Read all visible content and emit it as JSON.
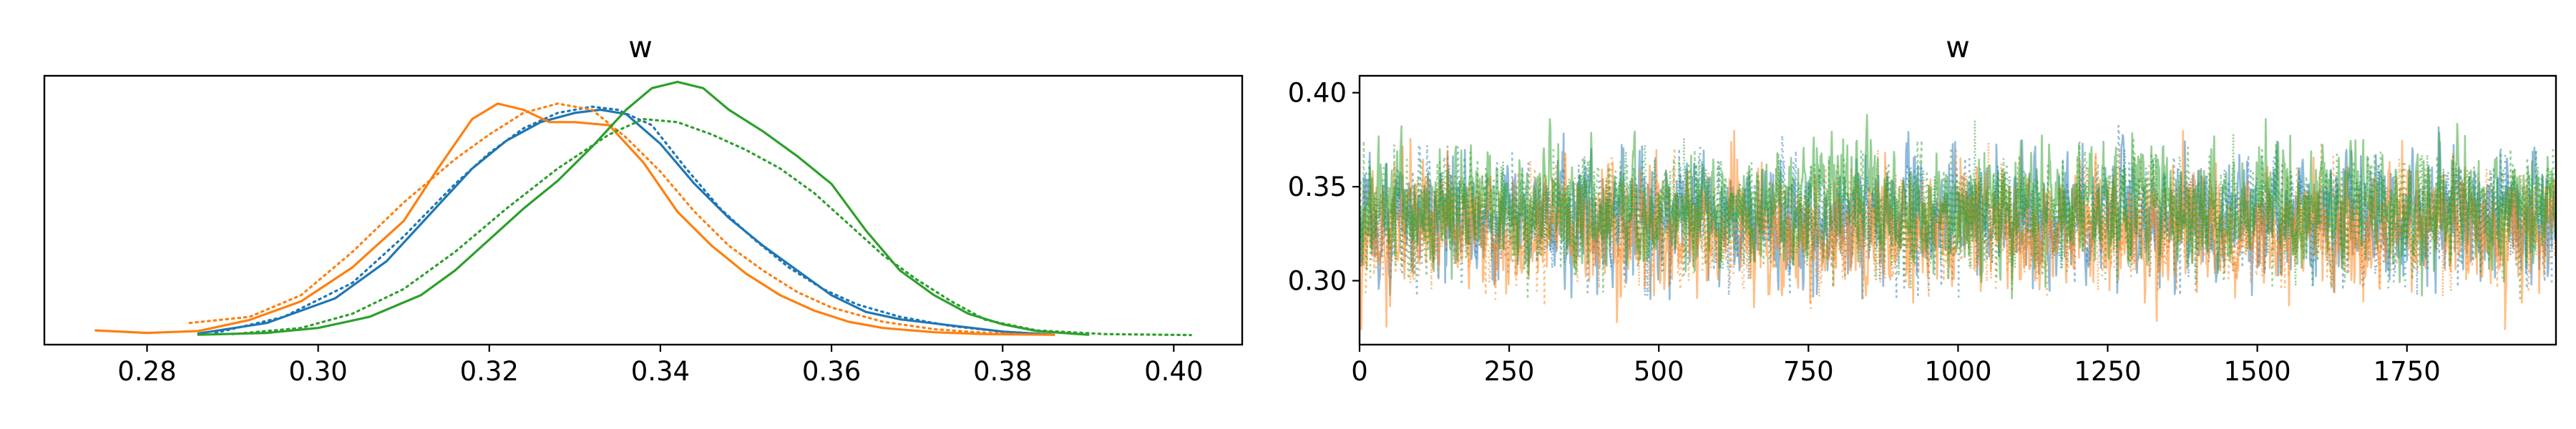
{
  "chart_data": [
    {
      "type": "area",
      "title": "w",
      "xlabel": "",
      "ylabel": "",
      "xlim": [
        0.268,
        0.408
      ],
      "ylim": [
        -1.5,
        42
      ],
      "xticks": [
        0.28,
        0.3,
        0.32,
        0.34,
        0.36,
        0.38,
        0.4
      ],
      "xtick_labels": [
        "0.28",
        "0.30",
        "0.32",
        "0.34",
        "0.36",
        "0.38",
        "0.40"
      ],
      "yticks_visible": false,
      "grid": false,
      "legend": "none",
      "series": [
        {
          "color": "#1f77b4",
          "linestyle": "solid",
          "x": [
            0.286,
            0.294,
            0.302,
            0.308,
            0.314,
            0.318,
            0.322,
            0.326,
            0.33,
            0.333,
            0.336,
            0.34,
            0.344,
            0.348,
            0.352,
            0.356,
            0.36,
            0.364,
            0.368,
            0.374,
            0.38,
            0.386
          ],
          "y": [
            0.3,
            2.0,
            6.0,
            12.0,
            21.0,
            27.0,
            31.5,
            34.5,
            36.0,
            36.5,
            35.8,
            31.0,
            24.5,
            19.0,
            14.5,
            10.5,
            6.5,
            3.8,
            2.6,
            1.6,
            0.6,
            0.1
          ]
        },
        {
          "color": "#1f77b4",
          "linestyle": "dotted",
          "x": [
            0.288,
            0.296,
            0.304,
            0.31,
            0.316,
            0.32,
            0.324,
            0.328,
            0.332,
            0.335,
            0.339,
            0.343,
            0.347,
            0.351,
            0.355,
            0.359,
            0.363,
            0.368,
            0.374,
            0.38,
            0.386
          ],
          "y": [
            0.4,
            3.0,
            8.5,
            16.0,
            24.5,
            29.5,
            33.5,
            36.0,
            37.0,
            36.5,
            34.0,
            27.0,
            20.5,
            15.5,
            11.0,
            7.5,
            5.0,
            3.0,
            1.5,
            0.6,
            0.1
          ]
        },
        {
          "color": "#ff7f0e",
          "linestyle": "solid",
          "x": [
            0.274,
            0.28,
            0.286,
            0.292,
            0.298,
            0.304,
            0.31,
            0.314,
            0.318,
            0.321,
            0.324,
            0.327,
            0.33,
            0.334,
            0.338,
            0.342,
            0.346,
            0.35,
            0.354,
            0.358,
            0.362,
            0.366,
            0.372,
            0.378,
            0.386
          ],
          "y": [
            0.8,
            0.4,
            0.7,
            2.5,
            5.5,
            11.0,
            18.5,
            27.0,
            35.0,
            37.5,
            36.5,
            34.5,
            34.5,
            34.0,
            28.0,
            20.0,
            14.5,
            10.0,
            6.5,
            4.0,
            2.2,
            1.2,
            0.5,
            0.2,
            0.1
          ]
        },
        {
          "color": "#ff7f0e",
          "linestyle": "dotted",
          "x": [
            0.285,
            0.292,
            0.298,
            0.304,
            0.31,
            0.316,
            0.32,
            0.324,
            0.328,
            0.332,
            0.336,
            0.34,
            0.344,
            0.348,
            0.352,
            0.356,
            0.36,
            0.366,
            0.372,
            0.378,
            0.384
          ],
          "y": [
            2.0,
            3.0,
            6.5,
            13.5,
            21.5,
            28.5,
            32.5,
            36.0,
            37.5,
            36.5,
            32.0,
            26.5,
            20.0,
            14.5,
            10.5,
            7.0,
            4.5,
            2.2,
            1.0,
            0.4,
            0.1
          ]
        },
        {
          "color": "#2ca02c",
          "linestyle": "solid",
          "x": [
            0.286,
            0.294,
            0.3,
            0.306,
            0.312,
            0.316,
            0.32,
            0.324,
            0.328,
            0.332,
            0.336,
            0.339,
            0.342,
            0.345,
            0.348,
            0.352,
            0.356,
            0.36,
            0.364,
            0.368,
            0.372,
            0.376,
            0.38,
            0.384,
            0.39
          ],
          "y": [
            0.1,
            0.4,
            1.2,
            3.0,
            6.5,
            10.5,
            15.5,
            20.5,
            25.0,
            30.5,
            36.5,
            40.0,
            41.0,
            40.0,
            36.5,
            33.0,
            29.0,
            24.5,
            17.0,
            10.5,
            6.5,
            3.5,
            1.8,
            0.7,
            0.1
          ]
        },
        {
          "color": "#2ca02c",
          "linestyle": "dotted",
          "x": [
            0.29,
            0.298,
            0.304,
            0.31,
            0.316,
            0.322,
            0.328,
            0.334,
            0.338,
            0.342,
            0.346,
            0.35,
            0.354,
            0.358,
            0.362,
            0.366,
            0.37,
            0.374,
            0.378,
            0.384,
            0.392,
            0.402
          ],
          "y": [
            0.2,
            1.2,
            3.5,
            7.5,
            13.5,
            20.5,
            27.0,
            32.5,
            35.0,
            34.5,
            32.5,
            30.0,
            27.0,
            23.0,
            18.0,
            13.0,
            9.0,
            5.5,
            2.5,
            0.8,
            0.2,
            0.05
          ]
        }
      ]
    },
    {
      "type": "line",
      "title": "w",
      "xlabel": "",
      "ylabel": "",
      "xlim": [
        0,
        1999
      ],
      "ylim": [
        0.266,
        0.409
      ],
      "xticks": [
        0,
        250,
        500,
        750,
        1000,
        1250,
        1500,
        1750
      ],
      "xtick_labels": [
        "0",
        "250",
        "500",
        "750",
        "1000",
        "1250",
        "1500",
        "1750"
      ],
      "yticks": [
        0.3,
        0.35,
        0.4
      ],
      "ytick_labels": [
        "0.30",
        "0.35",
        "0.40"
      ],
      "grid": false,
      "legend": "none",
      "n_draws": 2000,
      "series": [
        {
          "color": "#1f77b4",
          "linestyle": "solid",
          "alpha": 0.5,
          "mean": 0.333,
          "sd": 0.0155,
          "min": 0.29,
          "max": 0.385
        },
        {
          "color": "#1f77b4",
          "linestyle": "dotted",
          "alpha": 0.5,
          "mean": 0.333,
          "sd": 0.015,
          "min": 0.291,
          "max": 0.385
        },
        {
          "color": "#ff7f0e",
          "linestyle": "solid",
          "alpha": 0.5,
          "mean": 0.327,
          "sd": 0.0155,
          "min": 0.274,
          "max": 0.38
        },
        {
          "color": "#ff7f0e",
          "linestyle": "dotted",
          "alpha": 0.5,
          "mean": 0.329,
          "sd": 0.015,
          "min": 0.285,
          "max": 0.383
        },
        {
          "color": "#2ca02c",
          "linestyle": "solid",
          "alpha": 0.5,
          "mean": 0.34,
          "sd": 0.015,
          "min": 0.286,
          "max": 0.39
        },
        {
          "color": "#2ca02c",
          "linestyle": "dotted",
          "alpha": 0.5,
          "mean": 0.337,
          "sd": 0.0155,
          "min": 0.29,
          "max": 0.402
        }
      ]
    }
  ]
}
